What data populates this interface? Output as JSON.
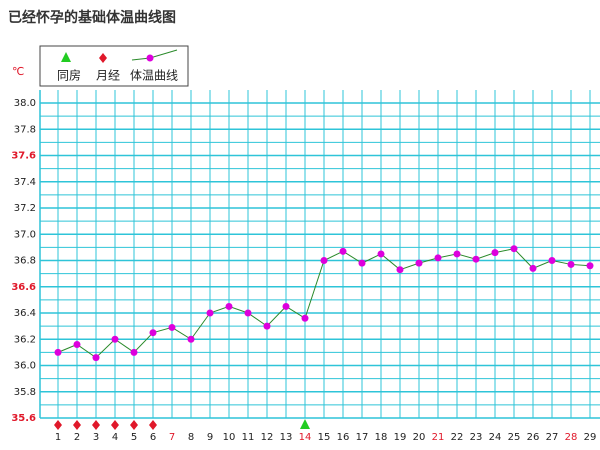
{
  "chart_data": {
    "type": "line",
    "title": "已经怀孕的基础体温曲线图",
    "y_unit": "℃",
    "categories": [
      "1",
      "2",
      "3",
      "4",
      "5",
      "6",
      "7",
      "8",
      "9",
      "10",
      "11",
      "12",
      "13",
      "14",
      "15",
      "16",
      "17",
      "18",
      "19",
      "20",
      "21",
      "22",
      "23",
      "24",
      "25",
      "26",
      "27",
      "28",
      "29"
    ],
    "category_colors": [
      "#222",
      "#222",
      "#222",
      "#222",
      "#222",
      "#222",
      "#e0182a",
      "#222",
      "#222",
      "#222",
      "#222",
      "#222",
      "#222",
      "#e0182a",
      "#222",
      "#222",
      "#222",
      "#222",
      "#222",
      "#222",
      "#e0182a",
      "#222",
      "#222",
      "#222",
      "#222",
      "#222",
      "#222",
      "#e0182a",
      "#222"
    ],
    "series": [
      {
        "name": "体温曲线",
        "color": "#2a8a2a",
        "marker_color": "#dd00dd",
        "values": [
          36.1,
          36.16,
          36.06,
          36.2,
          36.1,
          36.25,
          36.29,
          36.2,
          36.4,
          36.45,
          36.4,
          36.3,
          36.45,
          36.36,
          36.8,
          36.87,
          36.78,
          36.85,
          36.73,
          36.78,
          36.82,
          36.85,
          36.81,
          36.86,
          36.89,
          36.74,
          36.8,
          36.77,
          36.76
        ]
      }
    ],
    "events": [
      {
        "name": "同房",
        "color": "#22cc22",
        "shape": "triangle",
        "days": [
          14
        ]
      },
      {
        "name": "月经",
        "color": "#e0182a",
        "shape": "diamond",
        "days": [
          1,
          2,
          3,
          4,
          5,
          6
        ]
      }
    ],
    "ylim": [
      35.6,
      38.0
    ],
    "minor_step": 0.1,
    "yticks": [
      {
        "value": 35.6,
        "label": "35.6",
        "color": "#e0182a"
      },
      {
        "value": 35.8,
        "label": "35.8"
      },
      {
        "value": 36.0,
        "label": "36.0"
      },
      {
        "value": 36.2,
        "label": "36.2"
      },
      {
        "value": 36.4,
        "label": "36.4"
      },
      {
        "value": 36.6,
        "label": "36.6",
        "color": "#e0182a"
      },
      {
        "value": 36.8,
        "label": "36.8"
      },
      {
        "value": 37.0,
        "label": "37.0"
      },
      {
        "value": 37.2,
        "label": "37.2"
      },
      {
        "value": 37.4,
        "label": "37.4"
      },
      {
        "value": 37.6,
        "label": "37.6",
        "color": "#e0182a"
      },
      {
        "value": 37.8,
        "label": "37.8"
      },
      {
        "value": 38.0,
        "label": "38.0"
      }
    ],
    "grid_color": "#2ec4d8"
  }
}
